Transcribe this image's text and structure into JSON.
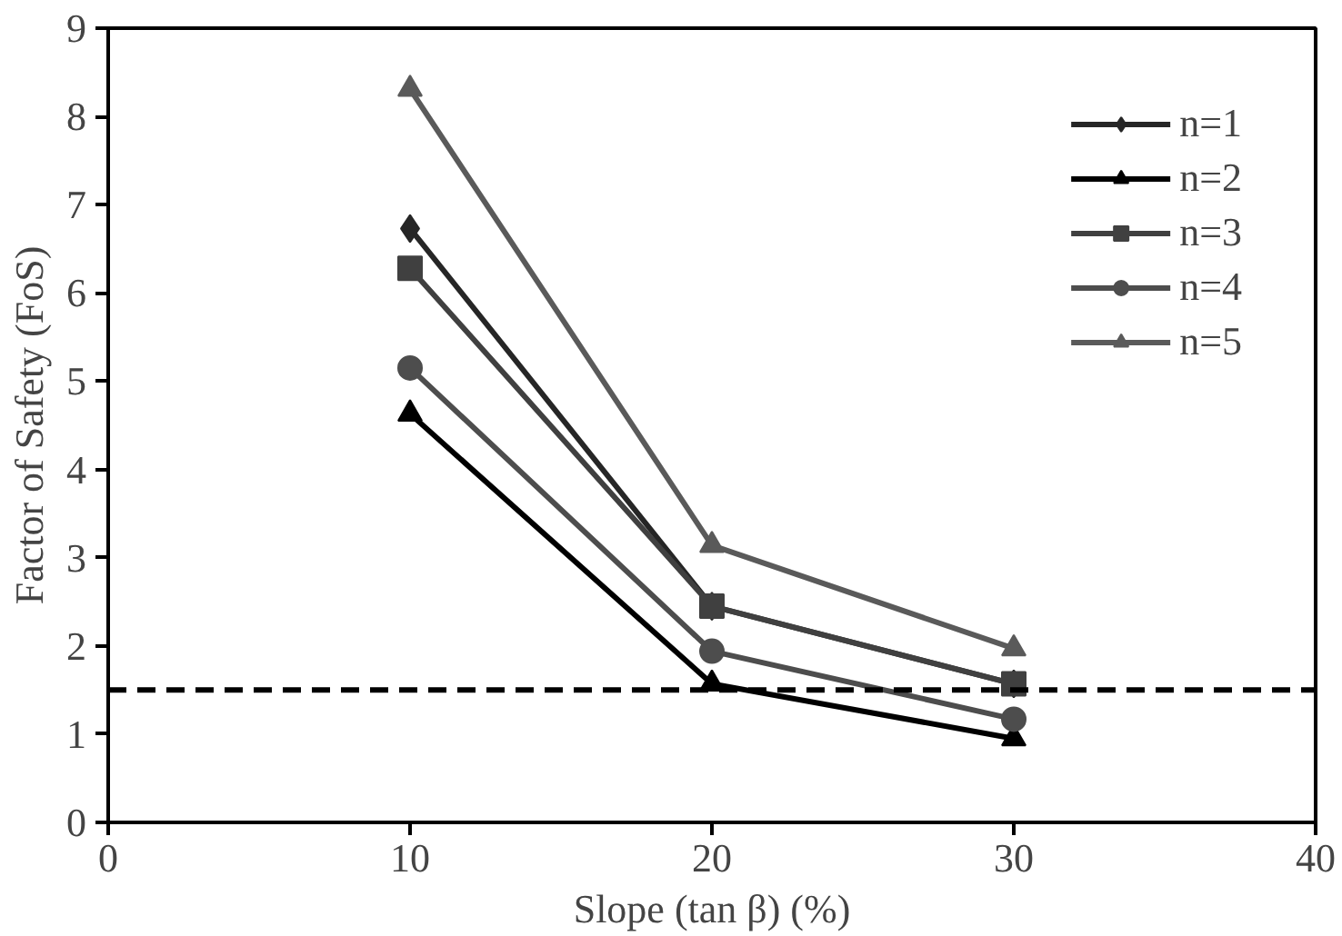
{
  "chart_data": {
    "type": "line",
    "xlabel": "Slope (tan β) (%)",
    "ylabel": "Factor of Safety (FoS)",
    "x": [
      10,
      20,
      30
    ],
    "series": [
      {
        "name": "n=1",
        "color": "#262626",
        "marker": "diamond",
        "values": [
          6.73,
          2.45,
          1.57
        ]
      },
      {
        "name": "n=2",
        "color": "#000000",
        "marker": "triangle",
        "values": [
          4.63,
          1.57,
          0.95
        ]
      },
      {
        "name": "n=3",
        "color": "#404040",
        "marker": "square",
        "values": [
          6.28,
          2.45,
          1.57
        ]
      },
      {
        "name": "n=4",
        "color": "#4d4d4d",
        "marker": "circle",
        "values": [
          5.15,
          1.94,
          1.17
        ]
      },
      {
        "name": "n=5",
        "color": "#5a5a5a",
        "marker": "triangle",
        "values": [
          8.31,
          3.14,
          1.97
        ]
      }
    ],
    "xlim": [
      0,
      40
    ],
    "xticks": [
      0,
      10,
      20,
      30,
      40
    ],
    "ylim": [
      0,
      9
    ],
    "yticks": [
      0,
      1,
      2,
      3,
      4,
      5,
      6,
      7,
      8,
      9
    ],
    "ref_lines": [
      {
        "axis": "y",
        "value": 1.5,
        "line_style": "dashed",
        "color": "#000000"
      }
    ],
    "grid": false,
    "legend": "top right",
    "line_style": "solid"
  }
}
